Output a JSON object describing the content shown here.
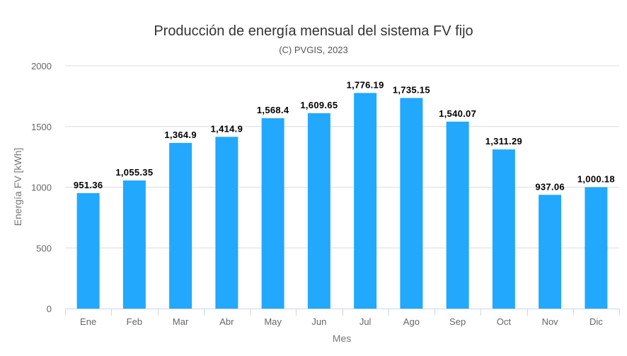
{
  "chart_data": {
    "type": "bar",
    "title": "Producción de energía mensual del sistema FV fijo",
    "subtitle": "(C) PVGIS, 2023",
    "xlabel": "Mes",
    "ylabel": "Energía FV [kWh]",
    "categories": [
      "Ene",
      "Feb",
      "Mar",
      "Abr",
      "May",
      "Jun",
      "Jul",
      "Ago",
      "Sep",
      "Oct",
      "Nov",
      "Dic"
    ],
    "values": [
      951.36,
      1055.35,
      1364.9,
      1414.9,
      1568.4,
      1609.65,
      1776.19,
      1735.15,
      1540.07,
      1311.29,
      937.06,
      1000.18
    ],
    "data_labels": [
      "951.36",
      "1,055.35",
      "1,364.9",
      "1,414.9",
      "1,568.4",
      "1,609.65",
      "1,776.19",
      "1,735.15",
      "1,540.07",
      "1,311.29",
      "937.06",
      "1,000.18"
    ],
    "ylim": [
      0,
      2000
    ],
    "yticks": [
      "0",
      "500",
      "1000",
      "1500",
      "2000"
    ],
    "grid": true,
    "legend": "none",
    "bar_color": "#22a8fc"
  }
}
